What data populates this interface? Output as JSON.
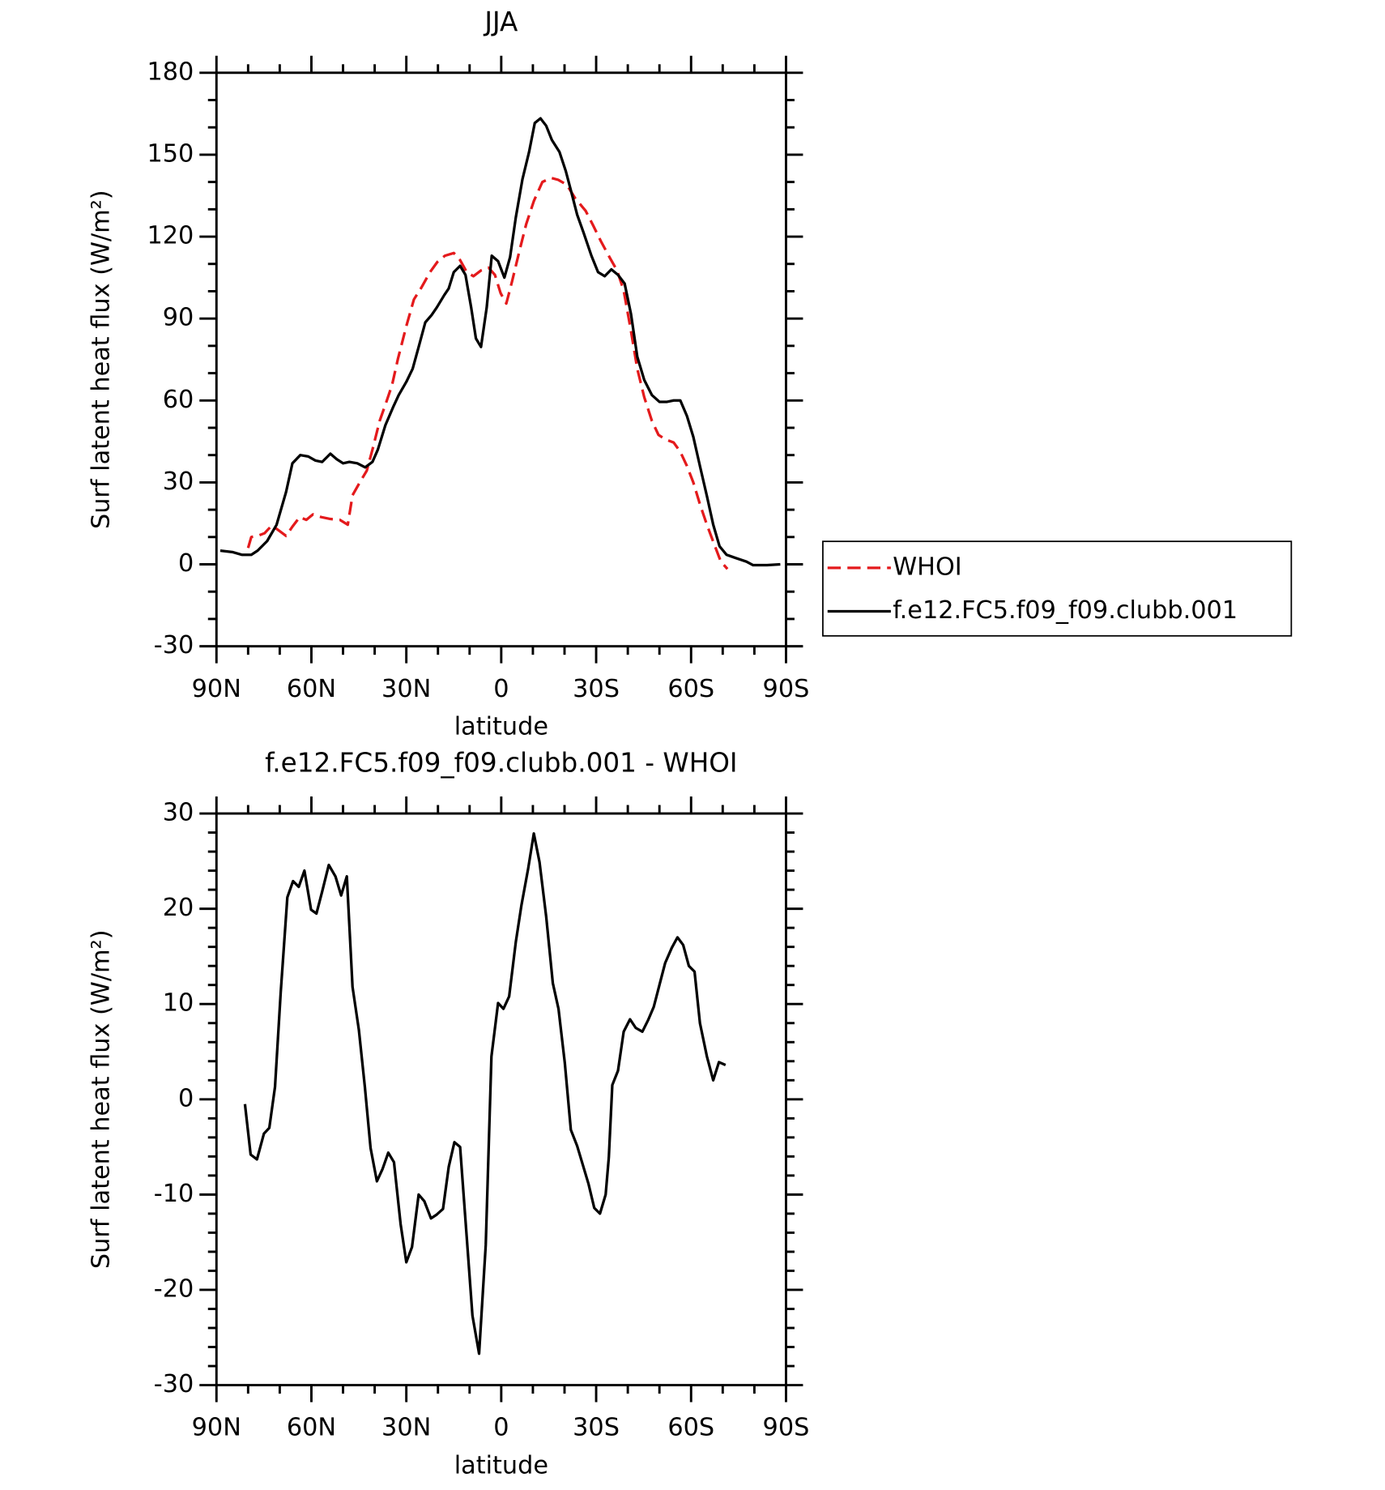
{
  "chart_data": [
    {
      "type": "line",
      "title": "JJA",
      "xlabel": "latitude",
      "ylabel": "Surf latent heat flux (W/m²)",
      "xlim": [
        90,
        -90
      ],
      "xticks": [
        {
          "value": 90,
          "label": "90N"
        },
        {
          "value": 60,
          "label": "60N"
        },
        {
          "value": 30,
          "label": "30N"
        },
        0,
        {
          "value": -30,
          "label": "30S"
        },
        {
          "value": -60,
          "label": "60S"
        },
        {
          "value": -90,
          "label": "90S"
        }
      ],
      "ylim": [
        -30,
        180
      ],
      "yticks": [
        -30,
        0,
        30,
        60,
        90,
        120,
        150,
        180
      ],
      "legend": "right",
      "series": [
        {
          "name": "WHOI",
          "color": "#e41a1c",
          "line_style": "dashed",
          "x": [
            80,
            79,
            77,
            74.8,
            72.7,
            71,
            68,
            66,
            63.7,
            61.6,
            59.5,
            56.9,
            54,
            51,
            48.5,
            47,
            45,
            42.5,
            40.7,
            38.4,
            36.3,
            34.5,
            32.7,
            30,
            27.6,
            25.2,
            22.5,
            20.2,
            17.8,
            15,
            13,
            10.9,
            8.8,
            6.4,
            4,
            2,
            0.2,
            -1.6,
            -3.4,
            -5.8,
            -7.9,
            -10.3,
            -13,
            -15.7,
            -18,
            -20.7,
            -23.4,
            -26.7,
            -29,
            -31.5,
            -34.2,
            -36.6,
            -38.7,
            -41,
            -43,
            -45.2,
            -47.6,
            -49.7,
            -52,
            -54.5,
            -56.6,
            -58.7,
            -60.7,
            -62.8,
            -65,
            -67,
            -69.4,
            -71.5
          ],
          "values": [
            6,
            10,
            10.4,
            11.4,
            14,
            13,
            10.4,
            13.8,
            17.3,
            16.3,
            18.3,
            17.3,
            16.6,
            16.3,
            14.5,
            25.3,
            29.4,
            34.3,
            42,
            52.6,
            59.5,
            65.7,
            75,
            87.2,
            97,
            101.4,
            107,
            110.7,
            113,
            114,
            111.4,
            107,
            105.5,
            107.6,
            108.6,
            106,
            99.3,
            95.5,
            103.5,
            115,
            124.6,
            133,
            140,
            141.5,
            140.8,
            139,
            134,
            129.4,
            124.2,
            118.3,
            112.5,
            107.6,
            100.3,
            85.5,
            71.6,
            61.2,
            52.6,
            47.4,
            45.7,
            44.6,
            41.2,
            36,
            30,
            22,
            14.5,
            8.3,
            1,
            -1.7
          ]
        },
        {
          "name": "f.e12.FC5.f09_f09.clubb.001",
          "color": "#000000",
          "line_style": "solid",
          "x": [
            88.8,
            85,
            82,
            79,
            77,
            74,
            71,
            68,
            66,
            63.5,
            61,
            58.7,
            56.6,
            54,
            52,
            50,
            48,
            45.5,
            43,
            40.7,
            39,
            36.6,
            34,
            32.4,
            30,
            28,
            26,
            24,
            22,
            20.4,
            18,
            16.6,
            15,
            13,
            11.3,
            9.5,
            8,
            6.4,
            4.6,
            3,
            1,
            -1,
            -2.8,
            -4.6,
            -6.7,
            -8.8,
            -10.6,
            -12.4,
            -14.2,
            -16,
            -18.4,
            -20.4,
            -22,
            -24,
            -26,
            -28.5,
            -30.6,
            -32.7,
            -34.8,
            -36.9,
            -39,
            -41,
            -43,
            -45.2,
            -47.6,
            -50,
            -52.4,
            -54.5,
            -56.6,
            -58.7,
            -60.7,
            -62.8,
            -65,
            -67,
            -69,
            -71.2,
            -73.9,
            -77.5,
            -79.6,
            -84,
            -88.2
          ],
          "values": [
            5,
            4.5,
            3.5,
            3.5,
            5,
            8.5,
            14.5,
            26.5,
            37,
            40,
            39.5,
            38,
            37.5,
            40.5,
            38.5,
            37,
            37.5,
            37,
            35.5,
            37.5,
            42,
            51,
            58,
            62,
            66.8,
            71.6,
            80,
            88.6,
            91.3,
            94,
            98.6,
            101,
            107,
            109.3,
            106,
            94,
            82.7,
            79.6,
            94,
            113,
            111,
            105,
            112.5,
            127,
            141,
            151,
            161.6,
            163.3,
            160.6,
            155.4,
            151,
            144,
            137,
            128,
            121.5,
            113,
            107,
            105.5,
            108,
            106,
            102.8,
            91.7,
            76,
            67.5,
            62,
            59.5,
            59.5,
            60,
            60,
            54.3,
            46.7,
            36,
            25,
            14.5,
            6.6,
            3.5,
            2.4,
            1,
            -0.3,
            -0.3,
            0
          ]
        }
      ]
    },
    {
      "type": "line",
      "title": "f.e12.FC5.f09_f09.clubb.001 - WHOI",
      "xlabel": "latitude",
      "ylabel": "Surf latent heat flux (W/m²)",
      "xlim": [
        90,
        -90
      ],
      "xticks": [
        {
          "value": 90,
          "label": "90N"
        },
        {
          "value": 60,
          "label": "60N"
        },
        {
          "value": 30,
          "label": "30N"
        },
        0,
        {
          "value": -30,
          "label": "30S"
        },
        {
          "value": -60,
          "label": "60S"
        },
        {
          "value": -90,
          "label": "90S"
        }
      ],
      "ylim": [
        -30,
        30
      ],
      "yticks": [
        -30,
        -20,
        -10,
        0,
        10,
        20,
        30
      ],
      "series": [
        {
          "color": "#000000",
          "line_style": "solid",
          "x": [
            81,
            79.2,
            77.2,
            75,
            73.3,
            71.5,
            69.7,
            67.6,
            65.8,
            64,
            62.2,
            60.1,
            58.4,
            56.6,
            54.5,
            52.4,
            50.6,
            48.8,
            47,
            45,
            43.1,
            41.3,
            39.3,
            37.5,
            35.7,
            33.9,
            31.8,
            30,
            28.2,
            26.1,
            24.3,
            22.2,
            20.4,
            18.4,
            16.6,
            14.8,
            13,
            10.9,
            9.1,
            7,
            4.9,
            3.1,
            1,
            -0.7,
            -2.5,
            -4.6,
            -6.4,
            -8.5,
            -10.3,
            -12.1,
            -14.2,
            -16.3,
            -18.1,
            -20.1,
            -22,
            -24,
            -25.8,
            -27.6,
            -29.4,
            -31.2,
            -33,
            -34,
            -35.1,
            -36.9,
            -38.7,
            -40.7,
            -42.5,
            -44.6,
            -46.4,
            -48.2,
            -50,
            -51.8,
            -53.9,
            -55.7,
            -57.5,
            -59.3,
            -61.1,
            -62.8,
            -65,
            -67,
            -68.8,
            -70.9
          ],
          "values": [
            -0.5,
            -5.8,
            -6.3,
            -3.6,
            -3,
            1.3,
            11.2,
            21.2,
            22.9,
            22.3,
            24,
            19.9,
            19.5,
            21.8,
            24.6,
            23.4,
            21.4,
            23.4,
            11.8,
            7.3,
            1.3,
            -5.1,
            -8.6,
            -7.3,
            -5.6,
            -6.6,
            -13.1,
            -17.1,
            -15.5,
            -10,
            -10.7,
            -12.5,
            -12.1,
            -11.5,
            -7.1,
            -4.5,
            -5,
            -14.5,
            -22.7,
            -26.7,
            -15.3,
            4.5,
            10.1,
            9.5,
            10.8,
            16.5,
            20.4,
            24.2,
            27.9,
            24.9,
            19.2,
            12.2,
            9.5,
            3.8,
            -3.2,
            -4.9,
            -6.9,
            -8.9,
            -11.4,
            -12,
            -10,
            -6.1,
            1.5,
            3,
            7.1,
            8.4,
            7.5,
            7.1,
            8.3,
            9.7,
            12,
            14.3,
            15.9,
            17,
            16.2,
            14,
            13.4,
            8,
            4.5,
            2,
            3.9,
            3.6
          ]
        }
      ]
    }
  ]
}
